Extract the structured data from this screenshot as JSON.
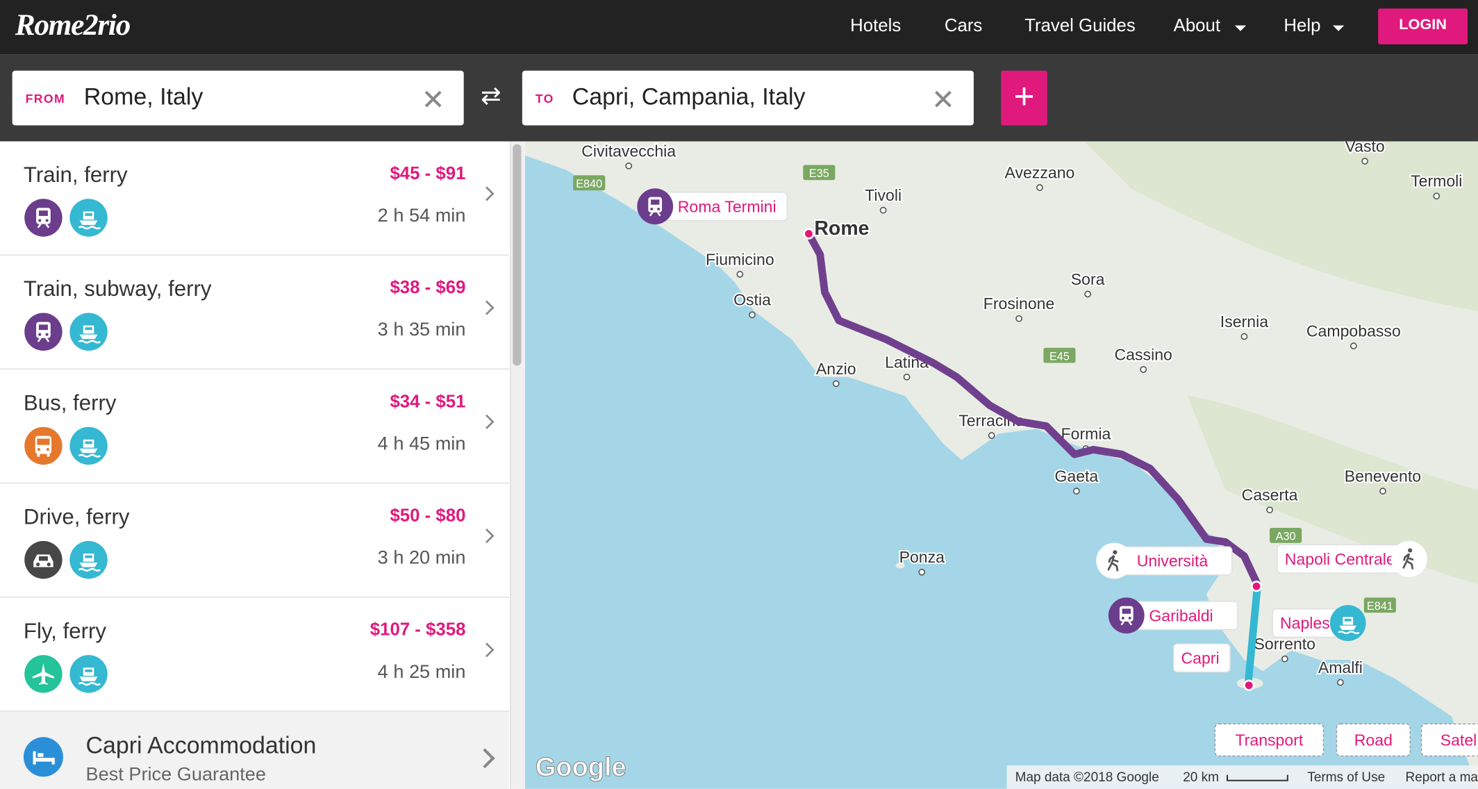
{
  "header": {
    "logo": "Rome2rio",
    "nav": [
      "Hotels",
      "Cars",
      "Travel Guides",
      "About",
      "Help"
    ],
    "login": "LOGIN"
  },
  "search": {
    "from_label": "FROM",
    "from": "Rome, Italy",
    "to_label": "TO",
    "to": "Capri, Campania, Italy"
  },
  "routes": [
    {
      "name": "Train, ferry",
      "price": "$45 - $91",
      "duration": "2 h 54 min"
    },
    {
      "name": "Train, subway, ferry",
      "price": "$38 - $69",
      "duration": "3 h 35 min"
    },
    {
      "name": "Bus, ferry",
      "price": "$34 - $51",
      "duration": "4 h 45 min"
    },
    {
      "name": "Drive, ferry",
      "price": "$50 - $80",
      "duration": "3 h 20 min"
    },
    {
      "name": "Fly, ferry",
      "price": "$107 - $358",
      "duration": "4 h 25 min"
    }
  ],
  "accommodation": {
    "title": "Capri Accommodation",
    "subtitle": "Best Price Guarantee"
  },
  "map": {
    "places": [
      "Civitavecchia",
      "Vasto",
      "Avezzano",
      "Tivoli",
      "Termoli",
      "Rome",
      "Fiumicino",
      "Ostia",
      "Sora",
      "Frosinone",
      "Isernia",
      "Campobasso",
      "Anzio",
      "Latina",
      "Cassino",
      "Terracina",
      "Formia",
      "Gaeta",
      "Caserta",
      "Benevento",
      "Ponza",
      "Sorrento",
      "Amalfi"
    ],
    "roads": [
      "E840",
      "E35",
      "E45",
      "A30",
      "E841"
    ],
    "stops": [
      "Roma Termini",
      "Università",
      "Napoli Centrale",
      "Garibaldi",
      "Naples",
      "Capri"
    ],
    "buttons": [
      "Transport",
      "Road",
      "Satel"
    ],
    "google": "Google",
    "attribution": "Map data ©2018 Google",
    "scale": "20 km",
    "terms": "Terms of Use",
    "report": "Report a ma"
  }
}
